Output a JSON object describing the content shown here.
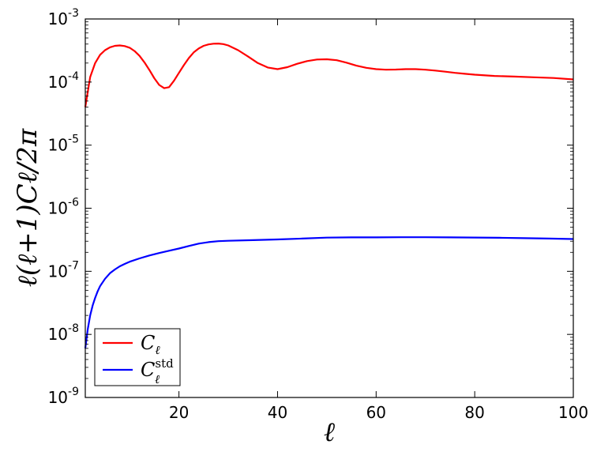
{
  "chart_data": {
    "type": "line",
    "title": "",
    "xlabel": "ℓ",
    "ylabel": "ℓ(ℓ+1)Cℓ/2π",
    "xlim": [
      1,
      100
    ],
    "ylim": [
      1e-09,
      0.001
    ],
    "yscale": "log",
    "grid": false,
    "legend_position": "lower-left",
    "x_ticks": [
      20,
      40,
      60,
      80,
      100
    ],
    "x_tick_labels": [
      "20",
      "40",
      "60",
      "80",
      "100"
    ],
    "y_ticks": [
      1e-09,
      1e-08,
      1e-07,
      1e-06,
      1e-05,
      0.0001,
      0.001
    ],
    "y_tick_labels": [
      {
        "base": "10",
        "exp": "-9"
      },
      {
        "base": "10",
        "exp": "-8"
      },
      {
        "base": "10",
        "exp": "-7"
      },
      {
        "base": "10",
        "exp": "-6"
      },
      {
        "base": "10",
        "exp": "-5"
      },
      {
        "base": "10",
        "exp": "-4"
      },
      {
        "base": "10",
        "exp": "-3"
      }
    ],
    "series": [
      {
        "name": "Cℓ",
        "legend": {
          "main": "C",
          "sub": "ℓ",
          "sup": ""
        },
        "color": "#ff0000",
        "x": [
          1,
          2,
          3,
          4,
          5,
          6,
          7,
          8,
          9,
          10,
          11,
          12,
          13,
          14,
          15,
          16,
          17,
          18,
          19,
          20,
          21,
          22,
          23,
          24,
          25,
          26,
          27,
          28,
          29,
          30,
          32,
          34,
          36,
          38,
          40,
          42,
          44,
          46,
          48,
          50,
          52,
          54,
          56,
          58,
          60,
          62,
          64,
          66,
          68,
          70,
          72,
          74,
          76,
          78,
          80,
          84,
          88,
          92,
          96,
          100
        ],
        "y": [
          4e-05,
          0.00012,
          0.0002,
          0.00027,
          0.00032,
          0.000355,
          0.000375,
          0.00038,
          0.000372,
          0.00035,
          0.00031,
          0.00026,
          0.000205,
          0.000155,
          0.000115,
          9e-05,
          8e-05,
          8.3e-05,
          0.000105,
          0.00014,
          0.000185,
          0.00024,
          0.000295,
          0.00034,
          0.000375,
          0.000395,
          0.000405,
          0.000408,
          0.0004,
          0.00038,
          0.00032,
          0.000255,
          0.0002,
          0.00017,
          0.00016,
          0.000172,
          0.000195,
          0.000215,
          0.000228,
          0.00023,
          0.000222,
          0.000203,
          0.000182,
          0.000168,
          0.00016,
          0.000157,
          0.000158,
          0.00016,
          0.00016,
          0.000157,
          0.000152,
          0.000146,
          0.00014,
          0.000135,
          0.000131,
          0.000125,
          0.000122,
          0.000119,
          0.000116,
          0.00011
        ]
      },
      {
        "name": "Cℓstd",
        "legend": {
          "main": "C",
          "sub": "ℓ",
          "sup": "std"
        },
        "color": "#0000ff",
        "x": [
          1,
          1.5,
          2,
          2.5,
          3,
          3.5,
          4,
          5,
          6,
          7,
          8,
          9,
          10,
          12,
          14,
          16,
          18,
          20,
          22,
          24,
          26,
          28,
          30,
          35,
          40,
          45,
          50,
          55,
          60,
          65,
          70,
          75,
          80,
          85,
          90,
          95,
          100
        ],
        "y": [
          6e-09,
          1.2e-08,
          2e-08,
          2.9e-08,
          3.8e-08,
          4.8e-08,
          5.8e-08,
          7.6e-08,
          9.3e-08,
          1.07e-07,
          1.2e-07,
          1.31e-07,
          1.42e-07,
          1.6e-07,
          1.78e-07,
          1.95e-07,
          2.12e-07,
          2.3e-07,
          2.52e-07,
          2.75e-07,
          2.9e-07,
          3e-07,
          3.05e-07,
          3.12e-07,
          3.2e-07,
          3.3e-07,
          3.42e-07,
          3.45e-07,
          3.45e-07,
          3.47e-07,
          3.47e-07,
          3.45e-07,
          3.43e-07,
          3.4e-07,
          3.35e-07,
          3.3e-07,
          3.25e-07
        ]
      }
    ]
  }
}
